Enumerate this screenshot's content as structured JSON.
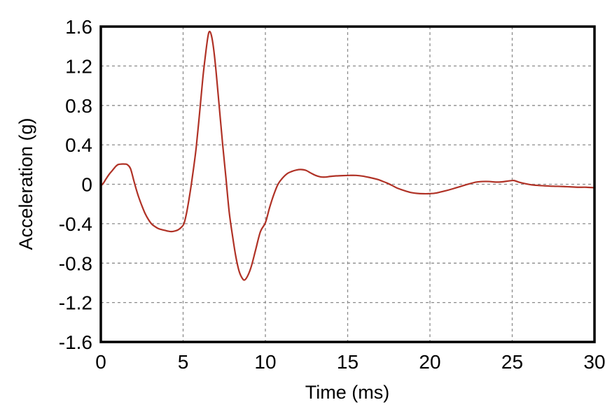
{
  "page": {
    "background": "#ffffff"
  },
  "chart_data": {
    "type": "line",
    "title": "",
    "xlabel": "Time (ms)",
    "ylabel": "Acceleration (g)",
    "xlim": [
      0,
      30
    ],
    "ylim": [
      -1.6,
      1.6
    ],
    "x_tick_values": [
      0,
      5,
      10,
      15,
      20,
      25,
      30
    ],
    "x_tick_labels": [
      "0",
      "5",
      "10",
      "15",
      "20",
      "25",
      "30"
    ],
    "y_tick_values": [
      1.6,
      1.2,
      0.8,
      0.4,
      0,
      -0.4,
      -0.8,
      -1.2,
      -1.6
    ],
    "y_tick_labels": [
      "1.6",
      "1.2",
      "0.8",
      "0.4",
      "0",
      "-0.4",
      "-0.8",
      "-1.2",
      "-1.6"
    ],
    "grid": {
      "show": true,
      "color": "#8c8c8c",
      "style": "dashed"
    },
    "frame_color": "#000000",
    "line_color": "#b03226",
    "legend": null,
    "series": [
      {
        "name": "acceleration",
        "points": [
          [
            0,
            -0.015
          ],
          [
            0.15,
            0.01
          ],
          [
            0.3,
            0.05
          ],
          [
            0.5,
            0.1
          ],
          [
            0.7,
            0.14
          ],
          [
            0.9,
            0.18
          ],
          [
            1.05,
            0.2
          ],
          [
            1.25,
            0.205
          ],
          [
            1.45,
            0.205
          ],
          [
            1.6,
            0.2
          ],
          [
            1.8,
            0.16
          ],
          [
            2.0,
            0.04
          ],
          [
            2.15,
            -0.05
          ],
          [
            2.3,
            -0.13
          ],
          [
            2.5,
            -0.22
          ],
          [
            2.7,
            -0.3
          ],
          [
            2.9,
            -0.36
          ],
          [
            3.1,
            -0.405
          ],
          [
            3.3,
            -0.43
          ],
          [
            3.5,
            -0.45
          ],
          [
            3.7,
            -0.46
          ],
          [
            3.9,
            -0.468
          ],
          [
            4.1,
            -0.476
          ],
          [
            4.3,
            -0.48
          ],
          [
            4.5,
            -0.474
          ],
          [
            4.7,
            -0.462
          ],
          [
            4.9,
            -0.435
          ],
          [
            5.05,
            -0.4
          ],
          [
            5.2,
            -0.3
          ],
          [
            5.35,
            -0.16
          ],
          [
            5.5,
            0.0
          ],
          [
            5.65,
            0.18
          ],
          [
            5.8,
            0.38
          ],
          [
            6.0,
            0.72
          ],
          [
            6.2,
            1.08
          ],
          [
            6.35,
            1.3
          ],
          [
            6.5,
            1.49
          ],
          [
            6.6,
            1.55
          ],
          [
            6.72,
            1.51
          ],
          [
            6.85,
            1.38
          ],
          [
            7.0,
            1.15
          ],
          [
            7.2,
            0.78
          ],
          [
            7.4,
            0.41
          ],
          [
            7.6,
            0.07
          ],
          [
            7.8,
            -0.28
          ],
          [
            8.0,
            -0.52
          ],
          [
            8.2,
            -0.73
          ],
          [
            8.4,
            -0.88
          ],
          [
            8.6,
            -0.955
          ],
          [
            8.75,
            -0.97
          ],
          [
            8.95,
            -0.92
          ],
          [
            9.15,
            -0.83
          ],
          [
            9.4,
            -0.67
          ],
          [
            9.7,
            -0.48
          ],
          [
            10.0,
            -0.39
          ],
          [
            10.25,
            -0.24
          ],
          [
            10.5,
            -0.11
          ],
          [
            10.75,
            -0.005
          ],
          [
            11.0,
            0.055
          ],
          [
            11.3,
            0.105
          ],
          [
            11.6,
            0.13
          ],
          [
            11.9,
            0.145
          ],
          [
            12.15,
            0.15
          ],
          [
            12.45,
            0.142
          ],
          [
            12.75,
            0.115
          ],
          [
            13.05,
            0.09
          ],
          [
            13.35,
            0.075
          ],
          [
            13.65,
            0.073
          ],
          [
            13.95,
            0.08
          ],
          [
            14.3,
            0.085
          ],
          [
            14.7,
            0.088
          ],
          [
            15.1,
            0.09
          ],
          [
            15.5,
            0.09
          ],
          [
            15.9,
            0.083
          ],
          [
            16.3,
            0.07
          ],
          [
            16.8,
            0.05
          ],
          [
            17.1,
            0.032
          ],
          [
            17.4,
            0.012
          ],
          [
            17.7,
            -0.012
          ],
          [
            18.0,
            -0.038
          ],
          [
            18.4,
            -0.062
          ],
          [
            18.8,
            -0.082
          ],
          [
            19.2,
            -0.092
          ],
          [
            19.6,
            -0.096
          ],
          [
            20.0,
            -0.095
          ],
          [
            20.4,
            -0.088
          ],
          [
            20.8,
            -0.072
          ],
          [
            21.2,
            -0.055
          ],
          [
            21.6,
            -0.035
          ],
          [
            22.0,
            -0.015
          ],
          [
            22.4,
            0.005
          ],
          [
            22.8,
            0.022
          ],
          [
            23.2,
            0.028
          ],
          [
            23.6,
            0.028
          ],
          [
            24.0,
            0.022
          ],
          [
            24.4,
            0.025
          ],
          [
            24.8,
            0.034
          ],
          [
            25.1,
            0.038
          ],
          [
            25.4,
            0.022
          ],
          [
            25.8,
            0.006
          ],
          [
            26.2,
            -0.006
          ],
          [
            26.6,
            -0.012
          ],
          [
            27.0,
            -0.016
          ],
          [
            27.5,
            -0.02
          ],
          [
            28.0,
            -0.022
          ],
          [
            28.5,
            -0.026
          ],
          [
            29.0,
            -0.03
          ],
          [
            29.5,
            -0.03
          ],
          [
            30.0,
            -0.035
          ]
        ]
      }
    ]
  }
}
